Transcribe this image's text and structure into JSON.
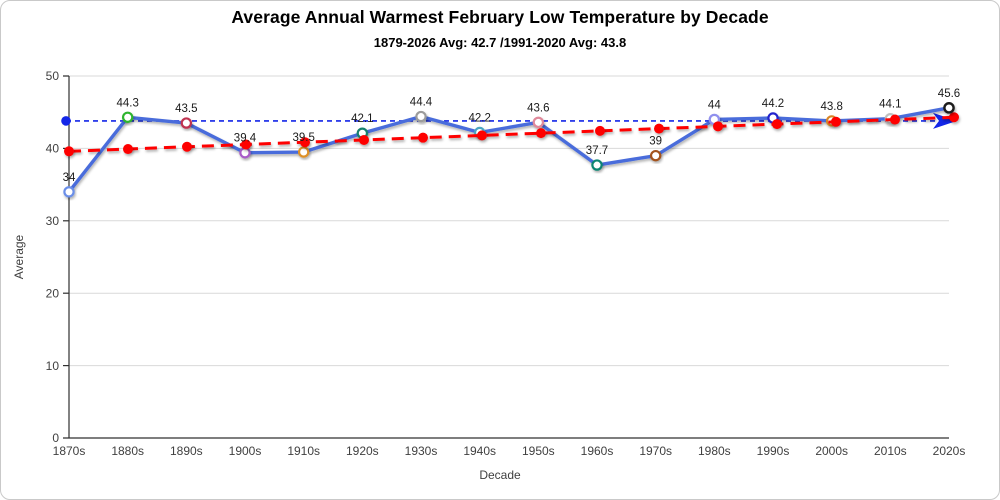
{
  "chart_data": {
    "type": "line",
    "title": "Average Annual Warmest February Low Temperature by Decade",
    "subtitle": "1879-2026 Avg: 42.7 /1991-2020 Avg: 43.8",
    "xlabel": "Decade",
    "ylabel": "Average",
    "ylim": [
      0,
      50
    ],
    "yticks": [
      0,
      10,
      20,
      30,
      40,
      50
    ],
    "grid": true,
    "legend": false,
    "categories": [
      "1870s",
      "1880s",
      "1890s",
      "1900s",
      "1910s",
      "1920s",
      "1930s",
      "1940s",
      "1950s",
      "1960s",
      "1970s",
      "1980s",
      "1990s",
      "2000s",
      "2010s",
      "2020s"
    ],
    "series": [
      {
        "id": "decade-average",
        "kind": "data-line",
        "color": "#4a6cdb",
        "marker": "open-circle",
        "values": [
          34,
          44.3,
          43.5,
          39.4,
          39.5,
          42.1,
          44.4,
          42.2,
          43.6,
          37.7,
          39,
          44,
          44.2,
          43.8,
          44.1,
          45.6
        ],
        "point_labels": [
          "34",
          "44.3",
          "43.5",
          "39.4",
          "39.5",
          "42.1",
          "44.4",
          "42.2",
          "43.6",
          "37.7",
          "39",
          "44",
          "44.2",
          "43.8",
          "44.1",
          "45.6"
        ],
        "marker_ring_colors": [
          "#6b8ee8",
          "#2db52d",
          "#bf3050",
          "#a85bc8",
          "#de9027",
          "#17806d",
          "#9c9c9c",
          "#4ba6c3",
          "#e0899b",
          "#108572",
          "#a3531e",
          "#9090ee",
          "#2222cc",
          "#d98428",
          "#bfbfbf",
          "#1a1a1a"
        ]
      },
      {
        "id": "linear-trend",
        "kind": "trend-line",
        "style": "dashed",
        "color": "#fe0000",
        "marker": "filled-dot",
        "start_value": 39.6,
        "end_value": 44.3
      },
      {
        "id": "reference-average",
        "kind": "horizontal-reference-line",
        "style": "dashed",
        "color": "#1326e8",
        "value": 43.8,
        "start_marker": "filled-dot",
        "end_marker": "arrow"
      }
    ],
    "colors": {
      "axis": "#303030",
      "tick_text": "#404040",
      "grid": "#d9d9d9",
      "data_label": "#1a1a1a"
    }
  }
}
